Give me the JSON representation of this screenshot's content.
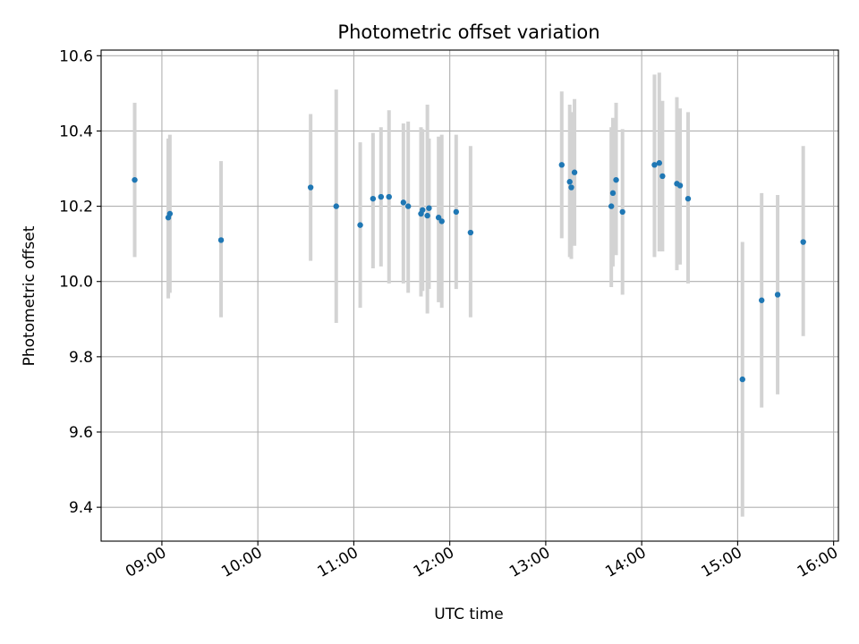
{
  "chart_data": {
    "type": "scatter",
    "title": "Photometric offset variation",
    "xlabel": "UTC time",
    "ylabel": "Photometric offset",
    "grid": true,
    "xlim": [
      "08:22",
      "16:03"
    ],
    "ylim": [
      9.31,
      10.615
    ],
    "xticks": [
      "09:00",
      "10:00",
      "11:00",
      "12:00",
      "13:00",
      "14:00",
      "15:00",
      "16:00"
    ],
    "yticks": [
      "9.4",
      "9.6",
      "9.8",
      "10.0",
      "10.2",
      "10.4",
      "10.6"
    ],
    "colors": {
      "marker": "#1f77b4",
      "errorbar": "#d3d3d3",
      "grid": "#b0b0b0"
    },
    "series": [
      {
        "points": [
          {
            "x": "08:43",
            "y": 10.27,
            "ylow": 10.065,
            "yhigh": 10.475
          },
          {
            "x": "09:04",
            "y": 10.17,
            "ylow": 9.955,
            "yhigh": 10.38
          },
          {
            "x": "09:05",
            "y": 10.18,
            "ylow": 9.97,
            "yhigh": 10.39
          },
          {
            "x": "09:37",
            "y": 10.11,
            "ylow": 9.905,
            "yhigh": 10.32
          },
          {
            "x": "10:33",
            "y": 10.25,
            "ylow": 10.055,
            "yhigh": 10.445
          },
          {
            "x": "10:49",
            "y": 10.2,
            "ylow": 9.89,
            "yhigh": 10.51
          },
          {
            "x": "11:04",
            "y": 10.15,
            "ylow": 9.93,
            "yhigh": 10.37
          },
          {
            "x": "11:12",
            "y": 10.22,
            "ylow": 10.035,
            "yhigh": 10.395
          },
          {
            "x": "11:17",
            "y": 10.225,
            "ylow": 10.04,
            "yhigh": 10.41
          },
          {
            "x": "11:22",
            "y": 10.225,
            "ylow": 9.995,
            "yhigh": 10.455
          },
          {
            "x": "11:31",
            "y": 10.21,
            "ylow": 9.995,
            "yhigh": 10.42
          },
          {
            "x": "11:34",
            "y": 10.2,
            "ylow": 9.97,
            "yhigh": 10.425
          },
          {
            "x": "11:42",
            "y": 10.18,
            "ylow": 9.96,
            "yhigh": 10.41
          },
          {
            "x": "11:43",
            "y": 10.19,
            "ylow": 9.975,
            "yhigh": 10.405
          },
          {
            "x": "11:46",
            "y": 10.175,
            "ylow": 9.915,
            "yhigh": 10.47
          },
          {
            "x": "11:47",
            "y": 10.195,
            "ylow": 9.98,
            "yhigh": 10.38
          },
          {
            "x": "11:53",
            "y": 10.17,
            "ylow": 9.945,
            "yhigh": 10.385
          },
          {
            "x": "11:55",
            "y": 10.16,
            "ylow": 9.93,
            "yhigh": 10.39
          },
          {
            "x": "12:04",
            "y": 10.185,
            "ylow": 9.98,
            "yhigh": 10.39
          },
          {
            "x": "12:13",
            "y": 10.13,
            "ylow": 9.905,
            "yhigh": 10.36
          },
          {
            "x": "13:10",
            "y": 10.31,
            "ylow": 10.115,
            "yhigh": 10.505
          },
          {
            "x": "13:15",
            "y": 10.265,
            "ylow": 10.065,
            "yhigh": 10.47
          },
          {
            "x": "13:16",
            "y": 10.25,
            "ylow": 10.06,
            "yhigh": 10.45
          },
          {
            "x": "13:18",
            "y": 10.29,
            "ylow": 10.095,
            "yhigh": 10.485
          },
          {
            "x": "13:41",
            "y": 10.2,
            "ylow": 9.985,
            "yhigh": 10.41
          },
          {
            "x": "13:42",
            "y": 10.235,
            "ylow": 10.04,
            "yhigh": 10.435
          },
          {
            "x": "13:44",
            "y": 10.27,
            "ylow": 10.07,
            "yhigh": 10.475
          },
          {
            "x": "13:48",
            "y": 10.185,
            "ylow": 9.965,
            "yhigh": 10.405
          },
          {
            "x": "14:08",
            "y": 10.31,
            "ylow": 10.065,
            "yhigh": 10.55
          },
          {
            "x": "14:11",
            "y": 10.315,
            "ylow": 10.08,
            "yhigh": 10.555
          },
          {
            "x": "14:13",
            "y": 10.28,
            "ylow": 10.08,
            "yhigh": 10.48
          },
          {
            "x": "14:22",
            "y": 10.26,
            "ylow": 10.03,
            "yhigh": 10.49
          },
          {
            "x": "14:24",
            "y": 10.255,
            "ylow": 10.045,
            "yhigh": 10.46
          },
          {
            "x": "14:29",
            "y": 10.22,
            "ylow": 9.995,
            "yhigh": 10.45
          },
          {
            "x": "15:03",
            "y": 9.74,
            "ylow": 9.375,
            "yhigh": 10.105
          },
          {
            "x": "15:15",
            "y": 9.95,
            "ylow": 9.665,
            "yhigh": 10.235
          },
          {
            "x": "15:25",
            "y": 9.965,
            "ylow": 9.7,
            "yhigh": 10.23
          },
          {
            "x": "15:41",
            "y": 10.105,
            "ylow": 9.855,
            "yhigh": 10.36
          }
        ]
      }
    ]
  }
}
